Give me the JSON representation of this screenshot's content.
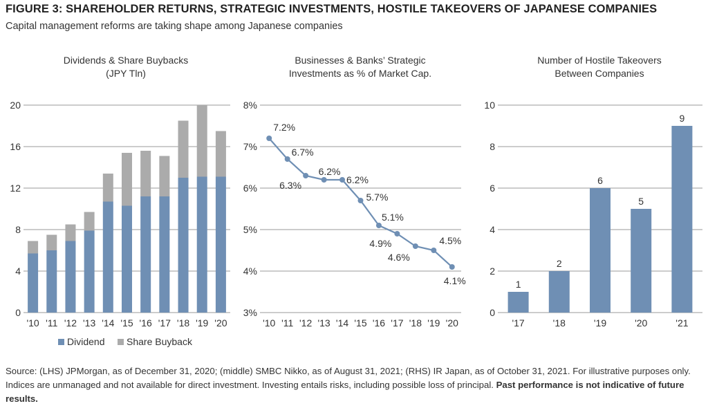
{
  "figure": {
    "title": "FIGURE 3: SHAREHOLDER RETURNS, STRATEGIC INVESTMENTS, HOSTILE TAKEOVERS OF JAPANESE COMPANIES",
    "subtitle": "Capital management reforms are taking shape among Japanese companies"
  },
  "colors": {
    "primary": "#6f8fb4",
    "secondary": "#ababab",
    "grid": "#9a9a9a",
    "text": "#333333"
  },
  "chart_data": [
    {
      "type": "bar",
      "stacked": true,
      "title_lines": [
        "Dividends & Share Buybacks",
        "(JPY Tln)"
      ],
      "categories": [
        "'10",
        "'11",
        "'12",
        "'13",
        "'14",
        "'15",
        "'16",
        "'17",
        "'18",
        "'19",
        "'20"
      ],
      "series": [
        {
          "name": "Dividend",
          "values": [
            5.7,
            6.0,
            6.9,
            7.9,
            10.7,
            10.3,
            11.2,
            11.2,
            13.0,
            13.1,
            13.1
          ]
        },
        {
          "name": "Share Buyback",
          "values": [
            1.2,
            1.5,
            1.6,
            1.8,
            2.7,
            5.1,
            4.4,
            3.9,
            5.5,
            6.9,
            4.4
          ]
        }
      ],
      "ylim": [
        0,
        20
      ],
      "yticks": [
        "0",
        "4",
        "8",
        "12",
        "16",
        "20"
      ],
      "grid": true,
      "legend": "bottom"
    },
    {
      "type": "line",
      "title_lines": [
        "Businesses & Banks’ Strategic",
        "Investments as % of Market Cap."
      ],
      "categories": [
        "'10",
        "'11",
        "'12",
        "'13",
        "'14",
        "'15",
        "'16",
        "'17",
        "'18",
        "'19",
        "'20"
      ],
      "values": [
        7.2,
        6.7,
        6.3,
        6.2,
        6.2,
        5.7,
        5.1,
        4.9,
        4.6,
        4.5,
        4.1
      ],
      "labels": [
        "7.2%",
        "6.7%",
        "6.3%",
        "6.2%",
        "6.2%",
        "5.7%",
        "5.1%",
        "4.9%",
        "4.6%",
        "4.5%",
        "4.1%"
      ],
      "ylim": [
        3,
        8
      ],
      "yticks": [
        "3%",
        "4%",
        "5%",
        "6%",
        "7%",
        "8%"
      ],
      "grid": true
    },
    {
      "type": "bar",
      "title_lines": [
        "Number of Hostile Takeovers",
        "Between Companies"
      ],
      "categories": [
        "'17",
        "'18",
        "'19",
        "'20",
        "'21"
      ],
      "values": [
        1,
        2,
        6,
        5,
        9
      ],
      "labels": [
        "1",
        "2",
        "6",
        "5",
        "9"
      ],
      "ylim": [
        0,
        10
      ],
      "yticks": [
        "0",
        "2",
        "4",
        "6",
        "8",
        "10"
      ],
      "grid": true
    }
  ],
  "footer": {
    "text": "Source: (LHS) JPMorgan, as of December 31, 2020; (middle) SMBC Nikko, as of August 31, 2021; (RHS) IR Japan, as of October 31, 2021. For illustrative purposes only. Indices are unmanaged and not available for direct investment. Investing entails risks, including possible loss of principal. ",
    "bold": "Past performance is not indicative of future results."
  }
}
